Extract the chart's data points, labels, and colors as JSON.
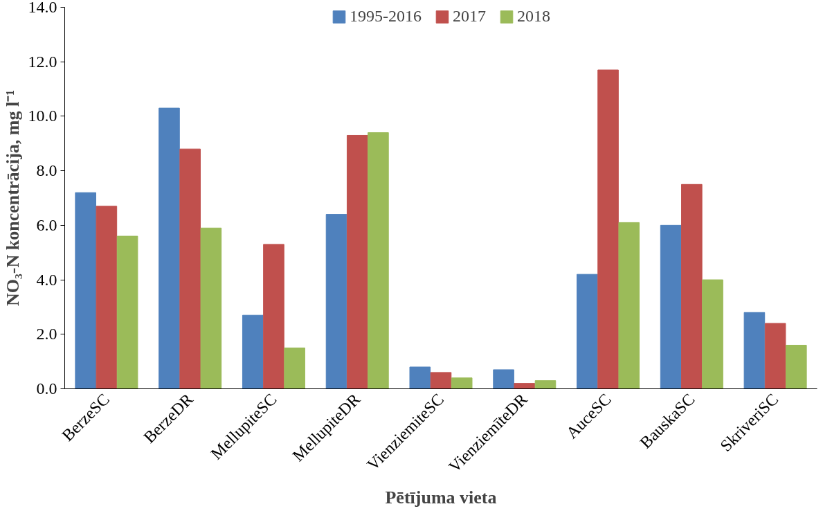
{
  "chart_data": {
    "type": "bar",
    "xlabel": "Pētījuma vieta",
    "ylabel": "NO₃-N koncentrācija, mg l⁻¹",
    "categories": [
      "BerzeSC",
      "BerzeDR",
      "MellupiteSC",
      "MellupiteDR",
      "VienziemiteSC",
      "VienziemīteDR",
      "AuceSC",
      "BauskaSC",
      "SkriveriSC"
    ],
    "series": [
      {
        "name": "1995-2016",
        "color": "#4f81bd",
        "values": [
          7.2,
          10.3,
          2.7,
          6.4,
          0.8,
          0.7,
          4.2,
          6.0,
          2.8
        ]
      },
      {
        "name": "2017",
        "color": "#c0504d",
        "values": [
          6.7,
          8.8,
          5.3,
          9.3,
          0.6,
          0.2,
          11.7,
          7.5,
          2.4
        ]
      },
      {
        "name": "2018",
        "color": "#9bbb59",
        "values": [
          5.6,
          5.9,
          1.5,
          9.4,
          0.4,
          0.3,
          6.1,
          4.0,
          1.6
        ]
      }
    ],
    "ylim": [
      0,
      14
    ],
    "yticks": [
      {
        "value": 0,
        "label": "0.0"
      },
      {
        "value": 2,
        "label": "2.0"
      },
      {
        "value": 4,
        "label": "4.0"
      },
      {
        "value": 6,
        "label": "6.0"
      },
      {
        "value": 8,
        "label": "8.0"
      },
      {
        "value": 10,
        "label": "10.0"
      },
      {
        "value": 12,
        "label": "12.0"
      },
      {
        "value": 14,
        "label": "14.0"
      }
    ],
    "grid": false,
    "legend": "top"
  }
}
